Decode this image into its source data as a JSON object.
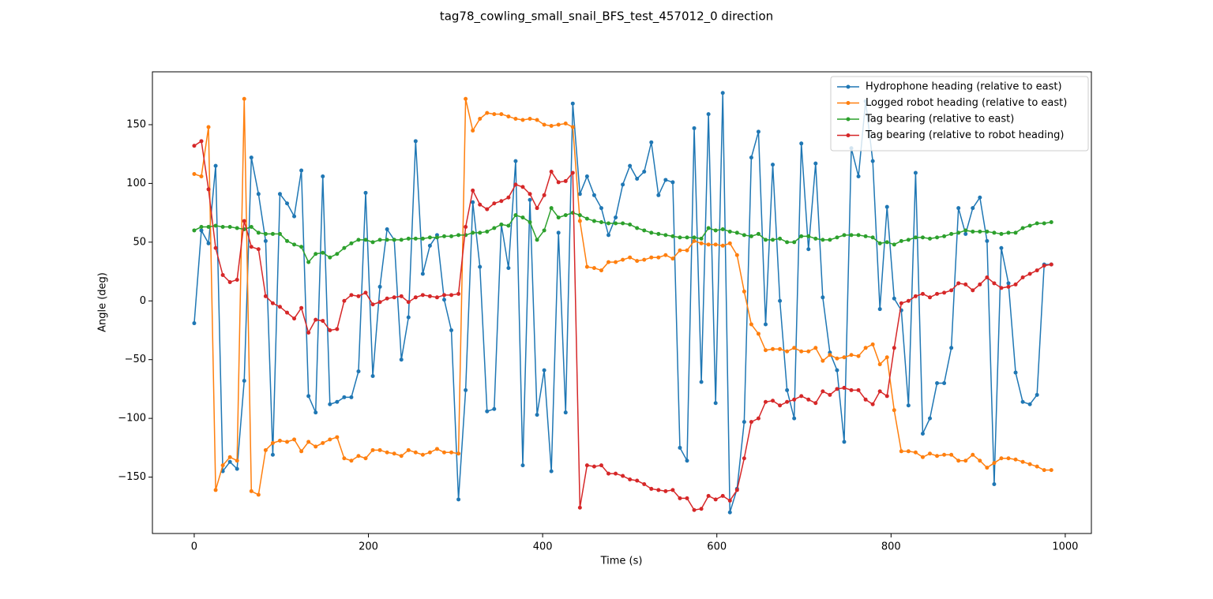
{
  "chart_data": {
    "type": "line",
    "title": "tag78_cowling_small_snail_BFS_test_457012_0 direction",
    "x_label": "Time (s)",
    "y_label": "Angle (deg)",
    "x": [
      0,
      8.2,
      16.4,
      24.6,
      32.8,
      41,
      49.2,
      57.4,
      65.6,
      73.8,
      82,
      90.2,
      98.4,
      106.6,
      114.8,
      123,
      131.2,
      139.4,
      147.6,
      155.8,
      164,
      172.2,
      180.4,
      188.6,
      196.8,
      205,
      213.2,
      221.4,
      229.6,
      237.8,
      246,
      254.2,
      262.4,
      270.6,
      278.8,
      287,
      295.2,
      303.4,
      311.6,
      319.8,
      328,
      336.2,
      344.4,
      352.6,
      360.8,
      369,
      377.2,
      385.4,
      393.6,
      401.8,
      410,
      418.2,
      426.4,
      434.6,
      442.8,
      451,
      459.2,
      467.4,
      475.6,
      483.8,
      492,
      500.2,
      508.4,
      516.6,
      524.8,
      533,
      541.2,
      549.4,
      557.6,
      565.8,
      574,
      582.2,
      590.4,
      598.6,
      606.8,
      615,
      623.2,
      631.4,
      639.6,
      647.8,
      656,
      664.2,
      672.4,
      680.6,
      688.8,
      697,
      705.2,
      713.4,
      721.6,
      729.8,
      738,
      746.2,
      754.4,
      762.6,
      770.8,
      779,
      787.2,
      795.4,
      803.6,
      811.8,
      820,
      828.2,
      836.4,
      844.6,
      852.8,
      861,
      869.2,
      877.4,
      885.6,
      893.8,
      902,
      910.2,
      918.4,
      926.6,
      934.8,
      943,
      951.2,
      959.4,
      967.6,
      975.8,
      984
    ],
    "series": [
      {
        "name": "Hydrophone heading (relative to east)",
        "color": "#1f77b4",
        "values": [
          -19,
          60,
          49,
          115,
          -145,
          -137,
          -143,
          -68,
          122,
          91,
          51,
          -131,
          91,
          83,
          72,
          111,
          -81,
          -95,
          106,
          -88,
          -86,
          -82,
          -82,
          -60,
          92,
          -64,
          12,
          61,
          52,
          -50,
          -14,
          136,
          23,
          47,
          56,
          1,
          -25,
          -169,
          -76,
          84,
          29,
          -94,
          -92,
          65,
          28,
          119,
          -140,
          86,
          -97,
          -59,
          -145,
          58,
          -95,
          168,
          91,
          106,
          90,
          79,
          56,
          71,
          99,
          115,
          104,
          110,
          135,
          90,
          103,
          101,
          -125,
          -136,
          147,
          -69,
          159,
          -87,
          177,
          -180,
          -160,
          -103,
          122,
          144,
          -20,
          116,
          0,
          -76,
          -100,
          134,
          44,
          117,
          3,
          -44,
          -59,
          -120,
          130,
          106,
          170,
          119,
          -7,
          80,
          2,
          -8,
          -89,
          109,
          -113,
          -100,
          -70,
          -70,
          -40,
          79,
          57,
          79,
          88,
          51,
          -156,
          45,
          15,
          -61,
          -86,
          -88,
          -80,
          31,
          31
        ]
      },
      {
        "name": "Logged robot heading (relative to east)",
        "color": "#ff7f0e",
        "values": [
          108,
          106,
          148,
          -161,
          -140,
          -133,
          -136,
          172,
          -162,
          -165,
          -127,
          -121,
          -119,
          -120,
          -118,
          -128,
          -120,
          -124,
          -121,
          -118,
          -116,
          -134,
          -136,
          -132,
          -134,
          -127,
          -127,
          -129,
          -130,
          -132,
          -127,
          -129,
          -131,
          -129,
          -126,
          -129,
          -129,
          -130,
          172,
          145,
          155,
          160,
          159,
          159,
          157,
          155,
          154,
          155,
          154,
          150,
          149,
          150,
          151,
          148,
          68,
          29,
          28,
          26,
          33,
          33,
          35,
          37,
          34,
          35,
          37,
          37,
          39,
          36,
          43,
          43,
          51,
          49,
          48,
          48,
          47,
          49,
          39,
          8,
          -20,
          -28,
          -42,
          -41,
          -41,
          -43,
          -40,
          -43,
          -43,
          -40,
          -51,
          -46,
          -49,
          -48,
          -46,
          -47,
          -40,
          -37,
          -54,
          -48,
          -93,
          -128,
          -128,
          -129,
          -133,
          -130,
          -132,
          -131,
          -131,
          -136,
          -136,
          -131,
          -136,
          -142,
          -138,
          -134,
          -134,
          -135,
          -137,
          -139,
          -141,
          -144,
          -144
        ]
      },
      {
        "name": "Tag bearing (relative to east)",
        "color": "#2ca02c",
        "values": [
          60,
          63,
          63,
          64,
          63,
          63,
          62,
          61,
          63,
          58,
          57,
          57,
          57,
          51,
          48,
          46,
          33,
          40,
          41,
          37,
          40,
          45,
          49,
          52,
          52,
          50,
          52,
          52,
          52,
          52,
          53,
          53,
          53,
          54,
          54,
          55,
          55,
          56,
          56,
          58,
          58,
          59,
          62,
          65,
          64,
          73,
          71,
          67,
          52,
          60,
          79,
          71,
          73,
          75,
          73,
          70,
          68,
          67,
          66,
          66,
          66,
          65,
          62,
          60,
          58,
          57,
          56,
          55,
          54,
          54,
          54,
          53,
          62,
          60,
          61,
          59,
          58,
          56,
          55,
          57,
          52,
          52,
          53,
          50,
          50,
          55,
          55,
          53,
          52,
          52,
          54,
          56,
          56,
          56,
          55,
          54,
          49,
          50,
          48,
          51,
          52,
          54,
          54,
          53,
          54,
          55,
          57,
          58,
          60,
          59,
          59,
          59,
          58,
          57,
          58,
          58,
          62,
          64,
          66,
          66,
          67
        ]
      },
      {
        "name": "Tag bearing (relative to robot heading)",
        "color": "#d62728",
        "values": [
          132,
          136,
          95,
          45,
          22,
          16,
          18,
          68,
          46,
          44,
          4,
          -2,
          -5,
          -10,
          -15,
          -6,
          -27,
          -16,
          -17,
          -25,
          -24,
          0,
          5,
          4,
          7,
          -3,
          -1,
          2,
          3,
          4,
          -1,
          3,
          5,
          4,
          3,
          5,
          5,
          6,
          63,
          94,
          82,
          78,
          83,
          85,
          88,
          99,
          97,
          91,
          79,
          90,
          110,
          101,
          102,
          109,
          -176,
          -140,
          -141,
          -140,
          -147,
          -147,
          -149,
          -152,
          -153,
          -156,
          -160,
          -161,
          -162,
          -161,
          -168,
          -168,
          -178,
          -177,
          -166,
          -169,
          -166,
          -170,
          -161,
          -134,
          -103,
          -100,
          -86,
          -85,
          -89,
          -86,
          -84,
          -81,
          -84,
          -87,
          -77,
          -80,
          -75,
          -74,
          -76,
          -76,
          -84,
          -88,
          -77,
          -81,
          -40,
          -2,
          0,
          4,
          6,
          3,
          6,
          7,
          9,
          15,
          14,
          9,
          14,
          20,
          15,
          11,
          12,
          14,
          20,
          23,
          26,
          30,
          31
        ]
      }
    ],
    "xlim": [
      -48,
      1030
    ],
    "ylim": [
      -198,
      195
    ],
    "xticks": [
      0,
      200,
      400,
      600,
      800,
      1000
    ],
    "yticks": [
      {
        "value": -150,
        "label": "−150"
      },
      {
        "value": -100,
        "label": "−100"
      },
      {
        "value": -50,
        "label": "−50"
      },
      0,
      50,
      100,
      150
    ],
    "grid": false,
    "legend": "upper right"
  }
}
